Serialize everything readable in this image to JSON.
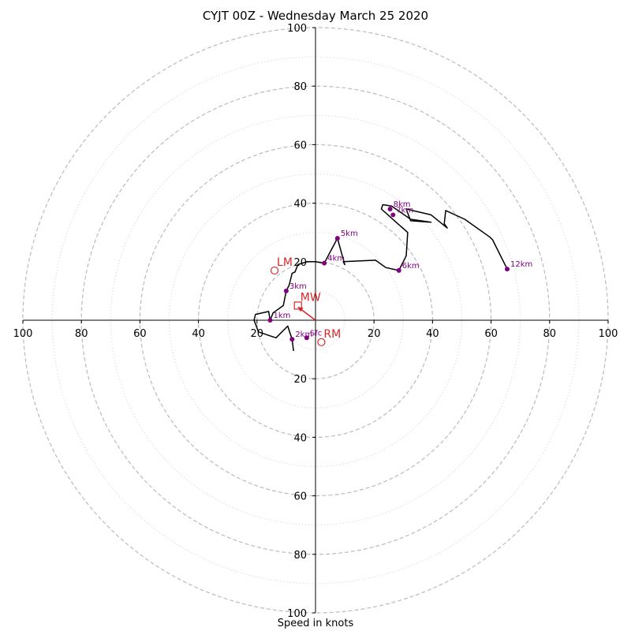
{
  "chart_data": {
    "type": "hodograph",
    "title": "CYJT 00Z - Wednesday March 25 2020",
    "xlabel": "Speed in knots",
    "max_speed": 100,
    "ring_major": [
      20,
      40,
      60,
      80,
      100
    ],
    "ring_minor": [
      10,
      30,
      50,
      70,
      90
    ],
    "tick_labels": {
      "top": [
        "20",
        "40",
        "60",
        "80",
        "100"
      ],
      "bottom": [
        "20",
        "40",
        "60",
        "80",
        "100"
      ],
      "left": [
        "20",
        "40",
        "60",
        "80",
        "100"
      ],
      "right": [
        "20",
        "40",
        "60",
        "80",
        "100"
      ]
    },
    "trace_uv": [
      [
        -7.5,
        -10.5
      ],
      [
        -8.0,
        -6.5
      ],
      [
        -9.5,
        -2.0
      ],
      [
        -13.5,
        -6.0
      ],
      [
        -19.5,
        -4.0
      ],
      [
        -21.0,
        0.0
      ],
      [
        -20.5,
        2.0
      ],
      [
        -16.0,
        3.0
      ],
      [
        -15.5,
        0.0
      ],
      [
        -14.5,
        2.5
      ],
      [
        -11.0,
        5.0
      ],
      [
        -10.0,
        10.0
      ],
      [
        -9.0,
        12.0
      ],
      [
        -8.0,
        16.0
      ],
      [
        -7.0,
        16.5
      ],
      [
        -6.0,
        19.0
      ],
      [
        -3.0,
        20.0
      ],
      [
        0.0,
        20.0
      ],
      [
        3.0,
        19.5
      ],
      [
        7.5,
        28.0
      ],
      [
        10.0,
        19.0
      ],
      [
        9.5,
        20.0
      ],
      [
        20.5,
        20.5
      ],
      [
        24.0,
        18.0
      ],
      [
        28.5,
        17.0
      ],
      [
        31.0,
        22.0
      ],
      [
        31.5,
        30.0
      ],
      [
        27.0,
        34.0
      ],
      [
        22.5,
        38.0
      ],
      [
        23.0,
        39.5
      ],
      [
        26.0,
        39.0
      ],
      [
        32.5,
        34.5
      ],
      [
        39.5,
        33.5
      ],
      [
        32.5,
        34.0
      ],
      [
        31.0,
        38.0
      ],
      [
        39.5,
        36.0
      ],
      [
        45.0,
        31.5
      ],
      [
        44.0,
        33.0
      ],
      [
        44.5,
        37.5
      ],
      [
        51.0,
        34.5
      ],
      [
        59.5,
        28.5
      ],
      [
        60.5,
        27.5
      ],
      [
        65.5,
        17.5
      ]
    ],
    "height_points": [
      {
        "label": "Sfc",
        "u": -3.0,
        "v": -6.0
      },
      {
        "label": "2km",
        "u": -8.0,
        "v": -6.5
      },
      {
        "label": "1km",
        "u": -15.5,
        "v": 0.0
      },
      {
        "label": "3km",
        "u": -10.0,
        "v": 10.0
      },
      {
        "label": "4km",
        "u": 3.0,
        "v": 19.5
      },
      {
        "label": "5km",
        "u": 7.5,
        "v": 28.0
      },
      {
        "label": "6km",
        "u": 28.5,
        "v": 17.0
      },
      {
        "label": "7km",
        "u": 26.5,
        "v": 36.0
      },
      {
        "label": "8km",
        "u": 25.5,
        "v": 38.0
      },
      {
        "label": "12km",
        "u": 65.5,
        "v": 17.5
      }
    ],
    "storm_motion": [
      {
        "label": "LM",
        "u": -14.0,
        "v": 17.0,
        "marker": "circle"
      },
      {
        "label": "MW",
        "u": -6.0,
        "v": 5.0,
        "marker": "square"
      },
      {
        "label": "RM",
        "u": 2.0,
        "v": -7.5,
        "marker": "circle"
      }
    ],
    "arrow": {
      "from_u": 0.0,
      "from_v": 0.0,
      "to_u": -6.0,
      "to_v": 4.5
    },
    "colors": {
      "trace": "#000000",
      "height_points": "#800080",
      "storm_motion": "#d62728",
      "grid": "#bbbbbb"
    }
  }
}
